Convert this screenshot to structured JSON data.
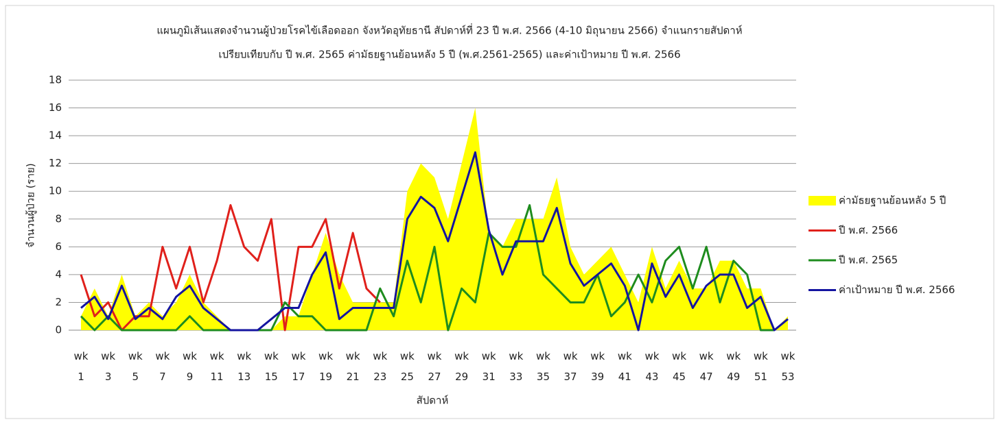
{
  "chart_data": {
    "type": "line",
    "title": [
      "แผนภูมิเส้นแสดงจำนวนผู้ป่วยโรคไข้เลือดออก จังหวัดอุทัยธานี สัปดาห์ที่ 23 ปี พ.ศ. 2566 (4-10 มิถุนายน 2566) จำแนกรายสัปดาห์",
      "เปรียบเทียบกับ ปี พ.ศ. 2565 ค่ามัธยฐานย้อนหลัง 5 ปี (พ.ศ.2561-2565) และค่าเป้าหมาย ปี พ.ศ. 2566"
    ],
    "x_label": "สัปดาห์",
    "y_label": "จำนวนผู้ป่วย (ราย)",
    "categories": [
      "wk 1",
      null,
      "wk 3",
      null,
      "wk 5",
      null,
      "wk 7",
      null,
      "wk 9",
      null,
      "wk 11",
      null,
      "wk 13",
      null,
      "wk 15",
      null,
      "wk 17",
      null,
      "wk 19",
      null,
      "wk 21",
      null,
      "wk 23",
      null,
      "wk 25",
      null,
      "wk 27",
      null,
      "wk 29",
      null,
      "wk 31",
      null,
      "wk 33",
      null,
      "wk 35",
      null,
      "wk 37",
      null,
      "wk 39",
      null,
      "wk 41",
      null,
      "wk 43",
      null,
      "wk 45",
      null,
      "wk 47",
      null,
      "wk 49",
      null,
      "wk 51",
      null,
      "wk 53"
    ],
    "ylim": [
      0,
      18
    ],
    "yticks": [
      0,
      2,
      4,
      6,
      8,
      10,
      12,
      14,
      16,
      18
    ],
    "grid": true,
    "series": [
      {
        "name": "ค่ามัธยฐานย้อนหลัง 5 ปี",
        "color": "#ffff00",
        "style": "area",
        "values": [
          1,
          3,
          1,
          4,
          1,
          2,
          1,
          2,
          4,
          2,
          1,
          0,
          0,
          0,
          0,
          1,
          1,
          4,
          7,
          4,
          2,
          2,
          2,
          2,
          10,
          12,
          11,
          8,
          12,
          16,
          7,
          6,
          8,
          8,
          8,
          11,
          6,
          4,
          5,
          6,
          4,
          2,
          6,
          3,
          5,
          3,
          3,
          5,
          5,
          3,
          3,
          0,
          1
        ]
      },
      {
        "name": "ปี พ.ศ. 2566",
        "color": "#e0201b",
        "style": "line",
        "values": [
          4,
          1,
          2,
          0,
          1,
          1,
          6,
          3,
          6,
          2,
          5,
          9,
          6,
          5,
          8,
          0,
          6,
          6,
          8,
          3,
          7,
          3,
          2,
          null,
          null,
          null,
          null,
          null,
          null,
          null,
          null,
          null,
          null,
          null,
          null,
          null,
          null,
          null,
          null,
          null,
          null,
          null,
          null,
          null,
          null,
          null,
          null,
          null,
          null,
          null,
          null,
          null,
          null
        ]
      },
      {
        "name": "ปี พ.ศ. 2565",
        "color": "#1e8c1e",
        "style": "line",
        "values": [
          1,
          0,
          1,
          0,
          0,
          0,
          0,
          0,
          1,
          0,
          0,
          0,
          0,
          0,
          0,
          2,
          1,
          1,
          0,
          0,
          0,
          0,
          3,
          1,
          5,
          2,
          6,
          0,
          3,
          2,
          7,
          6,
          6,
          9,
          4,
          3,
          2,
          2,
          4,
          1,
          2,
          4,
          2,
          5,
          6,
          3,
          6,
          2,
          5,
          4,
          0,
          0,
          null
        ]
      },
      {
        "name": "ค่าเป้าหมาย ปี พ.ศ. 2566",
        "color": "#1414a0",
        "style": "line",
        "values": [
          1.6,
          2.4,
          0.8,
          3.2,
          0.8,
          1.6,
          0.8,
          2.4,
          3.2,
          1.6,
          0.8,
          0,
          0,
          0,
          0.8,
          1.6,
          1.6,
          4,
          5.6,
          0.8,
          1.6,
          1.6,
          1.6,
          1.6,
          8,
          9.6,
          8.8,
          6.4,
          9.6,
          12.8,
          7.2,
          4,
          6.4,
          6.4,
          6.4,
          8.8,
          4.8,
          3.2,
          4,
          4.8,
          3.2,
          0,
          4.8,
          2.4,
          4,
          1.6,
          3.2,
          4,
          4,
          1.6,
          2.4,
          0,
          0.8
        ]
      }
    ]
  }
}
